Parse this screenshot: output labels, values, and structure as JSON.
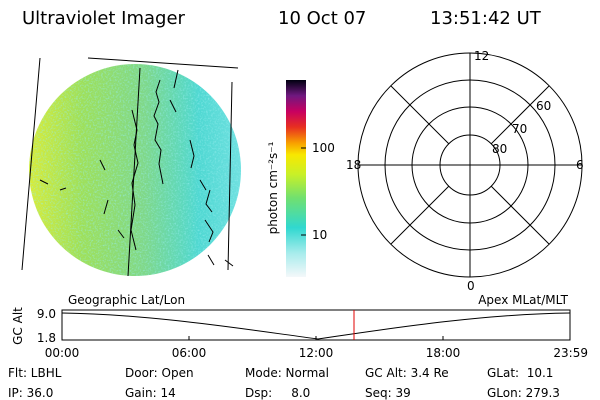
{
  "header": {
    "instrument": "Ultraviolet Imager",
    "date": "10 Oct 07",
    "time": "13:51:42 UT"
  },
  "colorbar": {
    "unit": "photon cm⁻²s⁻¹",
    "ticks": [
      "100",
      "10"
    ]
  },
  "polar": {
    "mlt_labels": {
      "top": "12",
      "right": "6",
      "bottom": "0",
      "left": "18"
    },
    "lat_labels": [
      "60",
      "70",
      "80"
    ]
  },
  "altitude_plot": {
    "left_title": "Geographic Lat/Lon",
    "right_title": "Apex MLat/MLT",
    "ylabel": "GC Alt",
    "yticks": [
      "9.0",
      "1.8"
    ],
    "xticks": [
      "00:00",
      "06:00",
      "12:00",
      "18:00",
      "23:59"
    ]
  },
  "status": {
    "col1": [
      "Flt: LBHL",
      "IP: 36.0"
    ],
    "col2": [
      "Door: Open",
      "Gain: 14"
    ],
    "col3": [
      "Mode: Normal",
      "Dsp:     8.0"
    ],
    "col4": [
      "GC Alt: 3.4 Re",
      "Seq: 39"
    ],
    "col5": [
      "GLat:  10.1",
      "GLon: 279.3"
    ]
  }
}
